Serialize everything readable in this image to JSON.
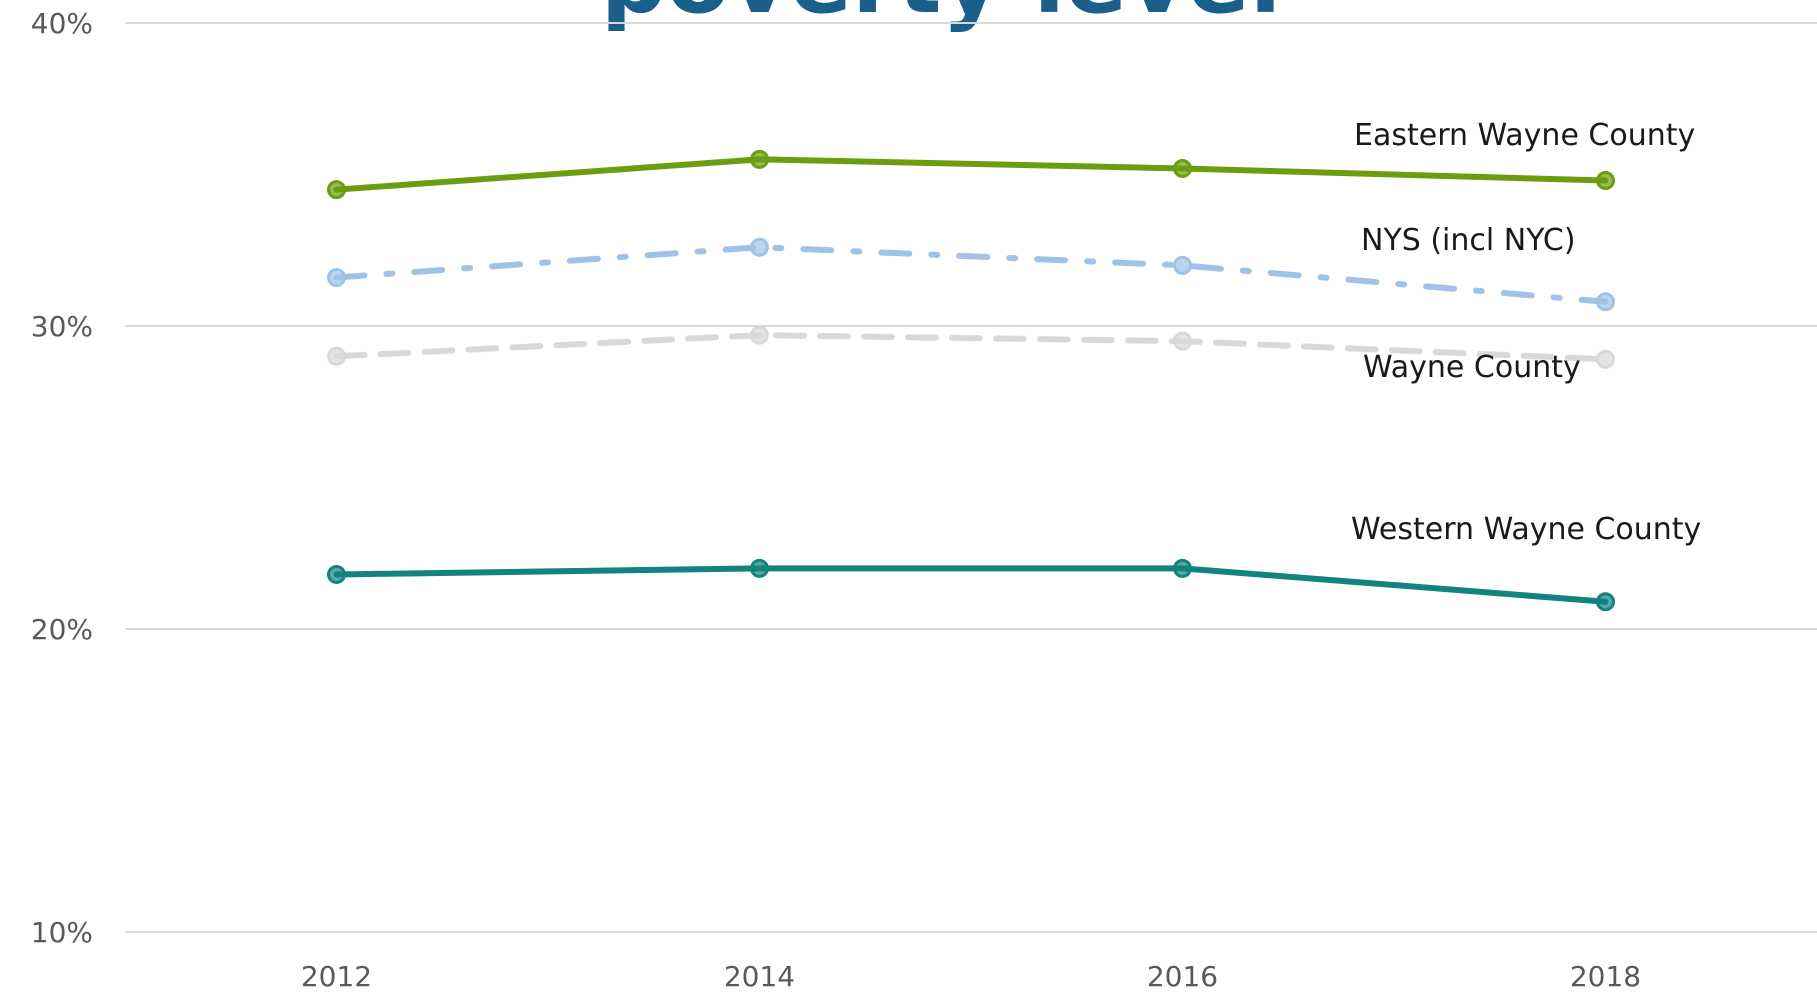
{
  "chart_data": {
    "type": "line",
    "title": "poverty level",
    "x": [
      2012,
      2014,
      2016,
      2018
    ],
    "xlim": [
      2011,
      2019
    ],
    "xticks": [
      2012,
      2014,
      2016,
      2018
    ],
    "ylim": [
      10,
      40
    ],
    "yticks": [
      {
        "value": 10,
        "label": "10%"
      },
      {
        "value": 20,
        "label": "20%"
      },
      {
        "value": 30,
        "label": "30%"
      },
      {
        "value": 40,
        "label": "40%"
      }
    ],
    "grid": true,
    "series": [
      {
        "name": "Eastern Wayne County",
        "color": "#6a9e10",
        "dash": "solid",
        "values": [
          34.5,
          35.5,
          35.2,
          34.8
        ]
      },
      {
        "name": "NYS (incl NYC)",
        "color": "#9fc3e8",
        "dash": "dashdot",
        "values": [
          31.6,
          32.6,
          32.0,
          30.8
        ]
      },
      {
        "name": "Wayne County",
        "color": "#d9d9d9",
        "dash": "dash",
        "values": [
          29.0,
          29.7,
          29.5,
          28.9
        ]
      },
      {
        "name": "Western Wayne County",
        "color": "#12837f",
        "dash": "solid",
        "values": [
          21.8,
          22.0,
          22.0,
          20.9
        ]
      }
    ]
  }
}
